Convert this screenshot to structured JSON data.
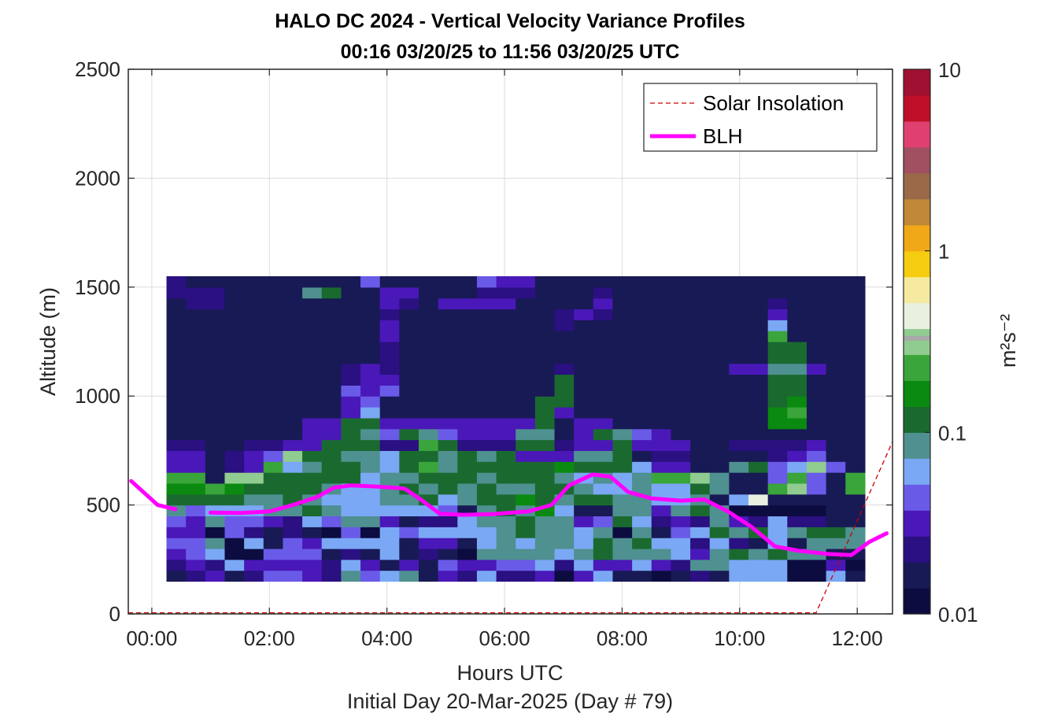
{
  "chart_data": {
    "type": "heatmap",
    "title": "HALO DC 2024 - Vertical Velocity Variance Profiles",
    "subtitle": "00:16 03/20/25 to 11:56 03/20/25  UTC",
    "xlabel": "Hours UTC",
    "xlabel2": "Initial Day 20-Mar-2025 (Day # 79)",
    "ylabel": "Altitude (m)",
    "xlim_hours": [
      -0.4,
      12.6
    ],
    "ylim": [
      0,
      2500
    ],
    "x_ticks": [
      0,
      2,
      4,
      6,
      8,
      10,
      12
    ],
    "x_tick_labels": [
      "00:00",
      "02:00",
      "04:00",
      "06:00",
      "08:00",
      "10:00",
      "12:00"
    ],
    "y_ticks": [
      0,
      500,
      1000,
      1500,
      2000,
      2500
    ],
    "y_tick_labels": [
      "0",
      "500",
      "1000",
      "1500",
      "2000",
      "2500"
    ],
    "grid": true,
    "colorbar": {
      "label": "m²s⁻²",
      "scale": "log",
      "range": [
        0.01,
        10
      ],
      "ticks": [
        0.01,
        0.1,
        1,
        10
      ],
      "tick_labels": [
        "0.01",
        "0.1",
        "1",
        "10"
      ],
      "colors": [
        "#0c0c40",
        "#181a55",
        "#2a1080",
        "#4a18b8",
        "#6a5ae8",
        "#7aa8f5",
        "#4f9090",
        "#1a6a30",
        "#0a8a10",
        "#3aa53a",
        "#90cc90",
        "#e8f0e0",
        "#f5eaa0",
        "#f5cc10",
        "#f0a818",
        "#c08838",
        "#9a6a48",
        "#a05060",
        "#e04070",
        "#c01028",
        "#a01030"
      ]
    },
    "legend": {
      "placement": "top-right",
      "entries": [
        {
          "label": "Solar Insolation",
          "style": "dashed",
          "color": "#cc0000"
        },
        {
          "label": "BLH",
          "style": "solid",
          "color": "#ff00ff"
        }
      ]
    },
    "blh_series": {
      "name": "BLH",
      "x_hours": [
        -0.35,
        0.1,
        0.4,
        0.6,
        1.0,
        1.5,
        2.0,
        2.4,
        2.8,
        3.1,
        3.4,
        3.8,
        4.1,
        4.3,
        4.6,
        4.9,
        5.3,
        5.8,
        6.4,
        6.8,
        7.1,
        7.5,
        7.8,
        8.1,
        8.5,
        9.0,
        9.4,
        9.8,
        10.2,
        10.6,
        11.0,
        11.5,
        11.9,
        12.2,
        12.5
      ],
      "y_m": [
        610,
        500,
        480,
        null,
        465,
        463,
        470,
        500,
        535,
        580,
        590,
        585,
        580,
        575,
        520,
        460,
        455,
        458,
        470,
        500,
        590,
        640,
        630,
        560,
        530,
        520,
        525,
        470,
        400,
        310,
        290,
        275,
        270,
        330,
        370
      ]
    },
    "solar_series": {
      "name": "Solar Insolation",
      "x_hours": [
        -0.4,
        11.3,
        12.6
      ],
      "y_m": [
        5,
        5,
        790
      ]
    },
    "heatmap": {
      "x_start_hours": 0.25,
      "x_step_hours": 0.33,
      "y_start_m": 100,
      "y_step_m": 50,
      "rows": [
        {
          "base": 100,
          "codes": "000000000000000000000000000000000000"
        },
        {
          "base": 150,
          "codes": "BCDBCEEDCGEFGBDCFCCDADFBBABCBFFFAAFB"
        },
        {
          "base": 200,
          "codes": "CDCFDDDDCFDBDBEDDEEFCFDDFDCGGFFFAADA"
        },
        {
          "base": 250,
          "codes": "DEFAAEEEBCBFBCBAGGGGFGHGGGFDGHGHGGBB"
        },
        {
          "base": 300,
          "codes": "EEGAFBEDFFFFBDDBFGFGGFHGHFFCFCBFBGGG"
        },
        {
          "base": 350,
          "codes": "DDAECBCBAEAFEFFFFGHGGFGAGBEFHGHFGHHG"
        },
        {
          "base": 400,
          "codes": "EDGEEDCFEGGDBCCFGGHGGDEHFCDCGDCFCCBB"
        },
        {
          "base": 450,
          "codes": "GEFFFGGHGFFFFFEBGHGIFBBGGDGHGAAAAABB"
        },
        {
          "base": 500,
          "codes": "HHHHGGHGFFFGGHFGHHIHGHHGGFFGBFLBBBBB"
        },
        {
          "base": 550,
          "codes": "IIJIHHHHGFFGHGHGHGGHHGFFGFFHGBBJKEBJ"
        },
        {
          "base": 600,
          "codes": "JJBKKHHHHHFGGHHHGHHHGFGFGJJKGBBEJEBJ"
        },
        {
          "base": 650,
          "codes": "DDBCDJFGHHGFHJGHHHHHIHHHFDDBBGHEFKEB"
        },
        {
          "base": 700,
          "codes": "DDBCDEKHHGGFHHGHGHDDDGGHBCCBBBBCDEBB"
        },
        {
          "base": 750,
          "codes": "CCBBCCDDHHHCCJHCCCHHCDDHDDDBBCCCCDBB"
        },
        {
          "base": 800,
          "codes": "BBBBBBBDDHGEHGEDDDGGBDHGEDBBBBBBBBBB"
        },
        {
          "base": 850,
          "codes": "BBBBBBBDDHHDDDDDDDDHBDDBBBBBBBBIIBBB"
        },
        {
          "base": 900,
          "codes": "BBBBBBBBBDFBBBBBBBBHDBBBBBBBBBBIJBBB"
        },
        {
          "base": 950,
          "codes": "BBBBBBBBBDEBBBBBBBBHHBBBBBBBBBBHIBBB"
        },
        {
          "base": 1000,
          "codes": "BBBBBBBBBEDEBBBBBBBBHBBBBBBBBBBHHBBB"
        },
        {
          "base": 1050,
          "codes": "BBBBBBBBBCDDBBBBBBBBHBBBBBBBBBBHHBBB"
        },
        {
          "base": 1100,
          "codes": "BBBBBBBBBCDCBBBBBBBBCBBBBBBBBDDGGDBB"
        },
        {
          "base": 1150,
          "codes": "BBBBBBBBBBBCBBBBBBBBBBBBBBBBBBBHHBBB"
        },
        {
          "base": 1200,
          "codes": "BBBBBBBBBBBCBBBBBBBBBBBBBBBBBBBHHBBB"
        },
        {
          "base": 1250,
          "codes": "BBBBBBBBBBBDBBBBBBBBBBBBBBBBBBBJBBBB"
        },
        {
          "base": 1300,
          "codes": "BBBBBBBBBBBDBBBBBBBBCBBBBBBBBBBFBBBB"
        },
        {
          "base": 1350,
          "codes": "BBBBBBBBBBBCBBBBBBBBCDCBBBBBBBBDBBBB"
        },
        {
          "base": 1400,
          "codes": "BCCBBBBBBBBDCBDDDDBBBBDBBBBBBBBCBBBB"
        },
        {
          "base": 1450,
          "codes": "CCCBBBBGHBBDDBBBCCCBBBCBBBBBBBBBBBBB"
        },
        {
          "base": 1500,
          "codes": "CBBBBBBBBBEBBBBBEDDBBBBBBBBBBBBBBBBB"
        }
      ]
    }
  }
}
